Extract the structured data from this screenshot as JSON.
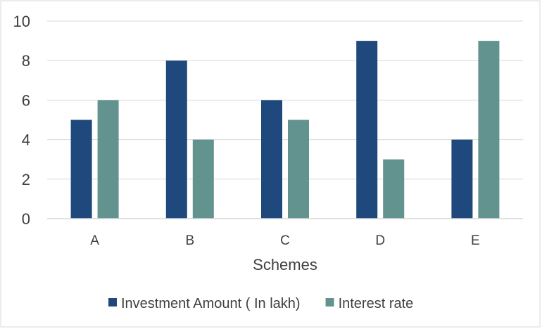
{
  "chart_data": {
    "type": "bar",
    "categories": [
      "A",
      "B",
      "C",
      "D",
      "E"
    ],
    "series": [
      {
        "name": "Investment Amount ( In lakh)",
        "color": "#1f497d",
        "values": [
          5,
          8,
          6,
          9,
          4
        ]
      },
      {
        "name": "Interest rate",
        "color": "#63938f",
        "values": [
          6,
          4,
          5,
          3,
          9
        ]
      }
    ],
    "title": "",
    "xlabel": "Schemes",
    "ylabel": "",
    "ylim": [
      0,
      10
    ],
    "yticks": [
      0,
      2,
      4,
      6,
      8,
      10
    ],
    "grid": true,
    "legend_position": "bottom"
  }
}
